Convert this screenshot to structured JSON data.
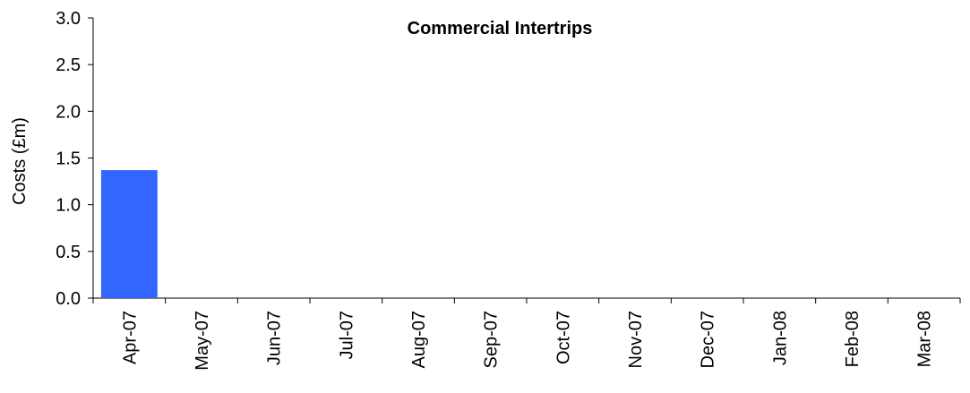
{
  "chart_data": {
    "type": "bar",
    "title": "Commercial Intertrips",
    "xlabel": "",
    "ylabel": "Costs (£m)",
    "ylim": [
      0,
      3.0
    ],
    "yticks": [
      "0.0",
      "0.5",
      "1.0",
      "1.5",
      "2.0",
      "2.5",
      "3.0"
    ],
    "categories": [
      "Apr-07",
      "May-07",
      "Jun-07",
      "Jul-07",
      "Aug-07",
      "Sep-07",
      "Oct-07",
      "Nov-07",
      "Dec-07",
      "Jan-08",
      "Feb-08",
      "Mar-08"
    ],
    "values": [
      1.37,
      0,
      0,
      0,
      0,
      0,
      0,
      0,
      0,
      0,
      0,
      0
    ],
    "bar_color": "#3366FF",
    "grid": false,
    "legend": "none"
  }
}
